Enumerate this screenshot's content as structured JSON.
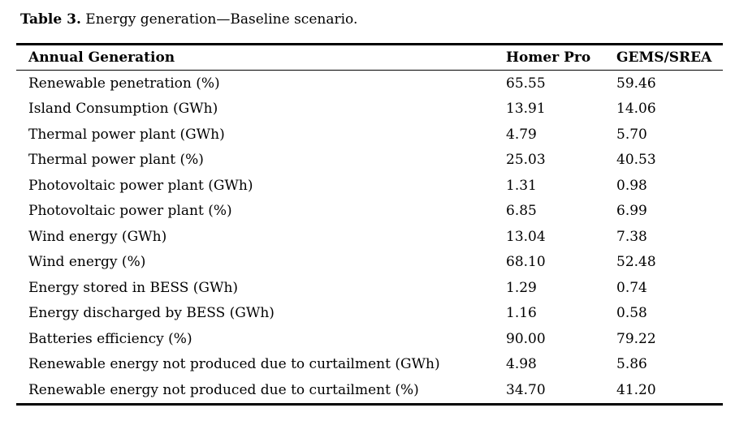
{
  "caption": {
    "label": "Table 3.",
    "text": " Energy generation—Baseline scenario."
  },
  "table": {
    "columns": [
      "Annual Generation",
      "Homer Pro",
      "GEMS/SREA"
    ],
    "rows": [
      {
        "label": "Renewable penetration (%)",
        "homer_pro": "65.55",
        "gems_srea": "59.46"
      },
      {
        "label": "Island Consumption (GWh)",
        "homer_pro": "13.91",
        "gems_srea": "14.06"
      },
      {
        "label": "Thermal power plant (GWh)",
        "homer_pro": "4.79",
        "gems_srea": "5.70"
      },
      {
        "label": "Thermal power plant (%)",
        "homer_pro": "25.03",
        "gems_srea": "40.53"
      },
      {
        "label": "Photovoltaic power plant (GWh)",
        "homer_pro": "1.31",
        "gems_srea": "0.98"
      },
      {
        "label": "Photovoltaic power plant (%)",
        "homer_pro": "6.85",
        "gems_srea": "6.99"
      },
      {
        "label": "Wind energy (GWh)",
        "homer_pro": "13.04",
        "gems_srea": "7.38"
      },
      {
        "label": "Wind energy (%)",
        "homer_pro": "68.10",
        "gems_srea": "52.48"
      },
      {
        "label": "Energy stored in BESS (GWh)",
        "homer_pro": "1.29",
        "gems_srea": "0.74"
      },
      {
        "label": "Energy discharged by BESS (GWh)",
        "homer_pro": "1.16",
        "gems_srea": "0.58"
      },
      {
        "label": "Batteries efficiency (%)",
        "homer_pro": "90.00",
        "gems_srea": "79.22"
      },
      {
        "label": "Renewable energy not produced due to curtailment (GWh)",
        "homer_pro": "4.98",
        "gems_srea": "5.86"
      },
      {
        "label": "Renewable energy not produced due to curtailment (%)",
        "homer_pro": "34.70",
        "gems_srea": "41.20"
      }
    ]
  },
  "colors": {
    "text": "#000000",
    "background": "#ffffff",
    "rule": "#000000"
  }
}
